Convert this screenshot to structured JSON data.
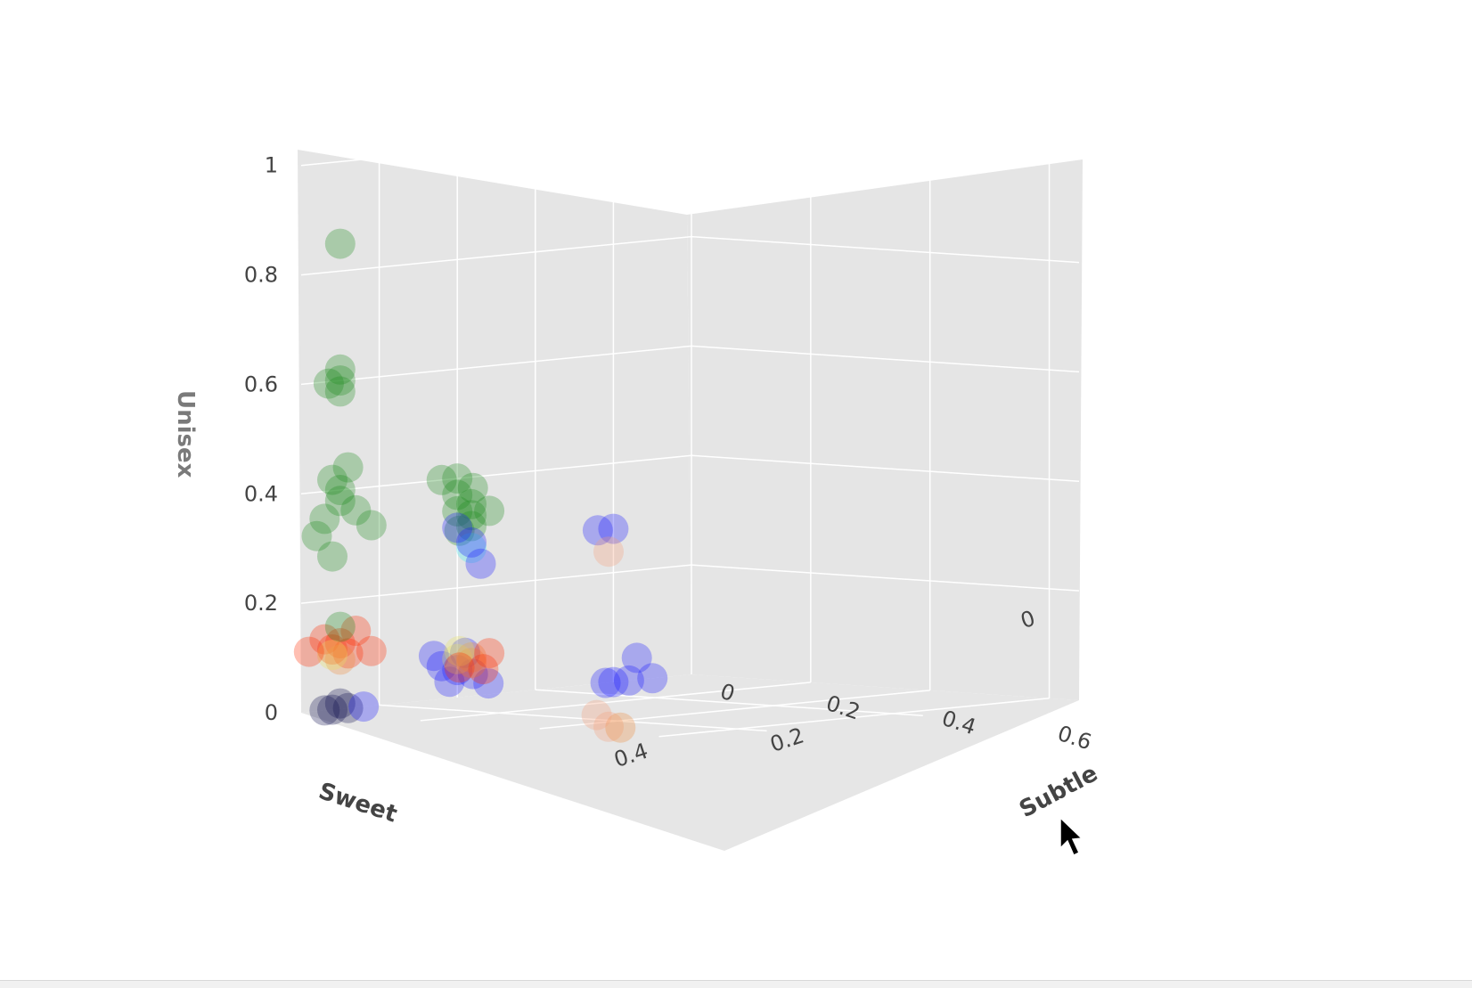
{
  "chart_data": {
    "type": "scatter3d",
    "axes": {
      "x": {
        "label": "Sweet",
        "ticks": [
          "0",
          "0.2",
          "0.4"
        ]
      },
      "y": {
        "label": "Subtle",
        "ticks": [
          "0",
          "0.2",
          "0.4",
          "0.6"
        ]
      },
      "z": {
        "label": "Unisex",
        "ticks": [
          "0",
          "0.2",
          "0.4",
          "0.6",
          "0.8",
          "1"
        ]
      }
    },
    "colors": {
      "pane": "#e5e5e5",
      "grid": "#ffffff",
      "blue": "#1a1aff",
      "navy": "#101050",
      "green": "#1e8a1e",
      "red": "#ff2a00",
      "orange": "#f08a3c",
      "yellow": "#e8e060",
      "cyan": "#40e8f0",
      "salmon": "#f5a07a"
    },
    "points": [
      {
        "x": 0.45,
        "y": 0.0,
        "z": 0.85,
        "color": "green"
      },
      {
        "x": 0.45,
        "y": 0.0,
        "z": 0.6,
        "color": "green"
      },
      {
        "x": 0.45,
        "y": 0.0,
        "z": 0.62,
        "color": "green"
      },
      {
        "x": 0.45,
        "y": 0.0,
        "z": 0.58,
        "color": "green"
      },
      {
        "x": 0.48,
        "y": 0.02,
        "z": 0.6,
        "color": "green"
      },
      {
        "x": 0.44,
        "y": 0.0,
        "z": 0.44,
        "color": "green"
      },
      {
        "x": 0.45,
        "y": 0.0,
        "z": 0.4,
        "color": "green"
      },
      {
        "x": 0.45,
        "y": 0.0,
        "z": 0.38,
        "color": "green"
      },
      {
        "x": 0.46,
        "y": 0.0,
        "z": 0.42,
        "color": "green"
      },
      {
        "x": 0.43,
        "y": 0.0,
        "z": 0.36,
        "color": "green"
      },
      {
        "x": 0.47,
        "y": 0.0,
        "z": 0.35,
        "color": "green"
      },
      {
        "x": 0.48,
        "y": 0.0,
        "z": 0.32,
        "color": "green"
      },
      {
        "x": 0.41,
        "y": 0.0,
        "z": 0.33,
        "color": "green"
      },
      {
        "x": 0.46,
        "y": 0.0,
        "z": 0.28,
        "color": "green"
      },
      {
        "x": 0.3,
        "y": 0.0,
        "z": 0.4,
        "color": "green"
      },
      {
        "x": 0.3,
        "y": 0.0,
        "z": 0.37,
        "color": "green"
      },
      {
        "x": 0.28,
        "y": 0.0,
        "z": 0.38,
        "color": "green"
      },
      {
        "x": 0.32,
        "y": 0.0,
        "z": 0.4,
        "color": "green"
      },
      {
        "x": 0.3,
        "y": 0.0,
        "z": 0.34,
        "color": "green"
      },
      {
        "x": 0.45,
        "y": 0.22,
        "z": 0.37,
        "color": "green"
      },
      {
        "x": 0.45,
        "y": 0.22,
        "z": 0.35,
        "color": "green"
      },
      {
        "x": 0.45,
        "y": 0.22,
        "z": 0.39,
        "color": "green"
      },
      {
        "x": 0.45,
        "y": 0.25,
        "z": 0.38,
        "color": "green"
      },
      {
        "x": 0.45,
        "y": 0.2,
        "z": 0.34,
        "color": "green"
      },
      {
        "x": 0.45,
        "y": 0.22,
        "z": 0.31,
        "color": "cyan"
      },
      {
        "x": 0.45,
        "y": 0.22,
        "z": 0.32,
        "color": "blue"
      },
      {
        "x": 0.1,
        "y": 0.0,
        "z": 0.28,
        "color": "blue"
      },
      {
        "x": 0.12,
        "y": 0.0,
        "z": 0.28,
        "color": "blue"
      },
      {
        "x": 0.27,
        "y": 0.0,
        "z": 0.24,
        "color": "blue"
      },
      {
        "x": 0.3,
        "y": 0.0,
        "z": 0.31,
        "color": "blue"
      },
      {
        "x": 0.3,
        "y": 0.0,
        "z": 0.05,
        "color": "blue"
      },
      {
        "x": 0.28,
        "y": 0.0,
        "z": 0.04,
        "color": "blue"
      },
      {
        "x": 0.32,
        "y": 0.0,
        "z": 0.06,
        "color": "blue"
      },
      {
        "x": 0.29,
        "y": 0.0,
        "z": 0.08,
        "color": "blue"
      },
      {
        "x": 0.31,
        "y": 0.0,
        "z": 0.03,
        "color": "blue"
      },
      {
        "x": 0.26,
        "y": 0.0,
        "z": 0.02,
        "color": "blue"
      },
      {
        "x": 0.33,
        "y": 0.0,
        "z": 0.08,
        "color": "blue"
      },
      {
        "x": 0.3,
        "y": 0.0,
        "z": 0.07,
        "color": "yellow"
      },
      {
        "x": 0.05,
        "y": 0.0,
        "z": 0.0,
        "color": "blue"
      },
      {
        "x": 0.07,
        "y": 0.0,
        "z": 0.04,
        "color": "blue"
      },
      {
        "x": 0.08,
        "y": 0.0,
        "z": 0.0,
        "color": "blue"
      },
      {
        "x": 0.1,
        "y": 0.0,
        "z": 0.0,
        "color": "blue"
      },
      {
        "x": 0.11,
        "y": 0.0,
        "z": 0.0,
        "color": "blue"
      },
      {
        "x": 0.44,
        "y": 0.0,
        "z": 0.0,
        "color": "navy"
      },
      {
        "x": 0.46,
        "y": 0.0,
        "z": 0.0,
        "color": "navy"
      },
      {
        "x": 0.45,
        "y": 0.0,
        "z": 0.01,
        "color": "navy"
      },
      {
        "x": 0.47,
        "y": 0.0,
        "z": 0.0,
        "color": "navy"
      },
      {
        "x": 0.42,
        "y": 0.0,
        "z": 0.0,
        "color": "blue"
      },
      {
        "x": 0.45,
        "y": 0.0,
        "z": 0.12,
        "color": "red"
      },
      {
        "x": 0.44,
        "y": 0.0,
        "z": 0.1,
        "color": "red"
      },
      {
        "x": 0.46,
        "y": 0.0,
        "z": 0.11,
        "color": "red"
      },
      {
        "x": 0.43,
        "y": 0.0,
        "z": 0.14,
        "color": "red"
      },
      {
        "x": 0.47,
        "y": 0.0,
        "z": 0.13,
        "color": "red"
      },
      {
        "x": 0.45,
        "y": 0.0,
        "z": 0.15,
        "color": "green"
      },
      {
        "x": 0.45,
        "y": 0.0,
        "z": 0.09,
        "color": "orange"
      },
      {
        "x": 0.46,
        "y": 0.0,
        "z": 0.1,
        "color": "yellow"
      },
      {
        "x": 0.41,
        "y": 0.0,
        "z": 0.1,
        "color": "red"
      },
      {
        "x": 0.49,
        "y": 0.0,
        "z": 0.11,
        "color": "red"
      },
      {
        "x": 0.45,
        "y": 0.22,
        "z": 0.11,
        "color": "orange"
      },
      {
        "x": 0.45,
        "y": 0.22,
        "z": 0.1,
        "color": "orange"
      },
      {
        "x": 0.45,
        "y": 0.25,
        "z": 0.12,
        "color": "red"
      },
      {
        "x": 0.45,
        "y": 0.2,
        "z": 0.12,
        "color": "yellow"
      },
      {
        "x": 0.45,
        "y": 0.24,
        "z": 0.09,
        "color": "red"
      },
      {
        "x": 0.45,
        "y": 0.2,
        "z": 0.09,
        "color": "red"
      },
      {
        "x": 0.45,
        "y": 0.45,
        "z": 0.0,
        "color": "salmon"
      },
      {
        "x": 0.45,
        "y": 0.47,
        "z": 0.0,
        "color": "orange"
      },
      {
        "x": 0.45,
        "y": 0.43,
        "z": 0.02,
        "color": "salmon"
      },
      {
        "x": 0.45,
        "y": 0.45,
        "z": 0.32,
        "color": "salmon"
      }
    ]
  }
}
